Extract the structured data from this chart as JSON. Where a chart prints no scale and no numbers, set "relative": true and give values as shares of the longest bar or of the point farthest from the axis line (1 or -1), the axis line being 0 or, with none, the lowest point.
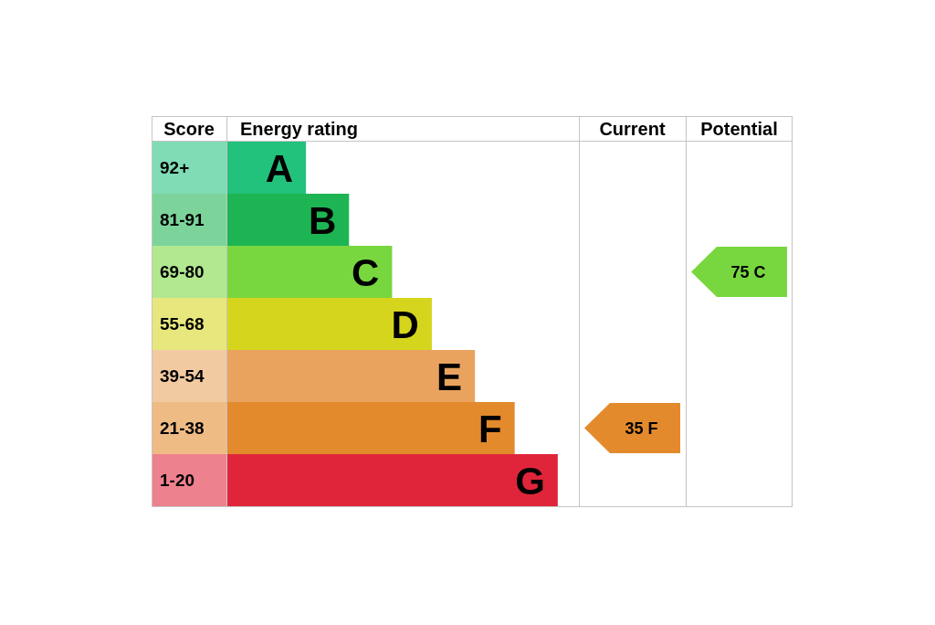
{
  "chart_data": [
    {
      "type": "bar",
      "orientation": "horizontal",
      "relative": true,
      "ylabel": "Score",
      "xlabel": "Energy rating",
      "categories": [
        "92+",
        "81-91",
        "69-80",
        "55-68",
        "39-54",
        "21-38",
        "1-20"
      ],
      "values": [
        0.24,
        0.37,
        0.5,
        0.62,
        0.75,
        0.87,
        1
      ],
      "colors": [
        "#22c27d",
        "#1db553",
        "#78d73f",
        "#d6d51e",
        "#e9a35f",
        "#e38a2d",
        "#e0253a"
      ],
      "annotations": [
        {
          "text": "A",
          "x": 0.24,
          "y": "92+"
        },
        {
          "text": "B",
          "x": 0.37,
          "y": "81-91"
        },
        {
          "text": "C",
          "x": 0.5,
          "y": "69-80"
        },
        {
          "text": "D",
          "x": 0.62,
          "y": "55-68"
        },
        {
          "text": "E",
          "x": 0.75,
          "y": "39-54"
        },
        {
          "text": "F",
          "x": 0.87,
          "y": "21-38"
        },
        {
          "text": "G",
          "x": 1,
          "y": "1-20"
        }
      ]
    },
    {
      "type": "other",
      "title": "Current",
      "values": [
        null,
        null,
        null,
        null,
        null,
        35,
        null
      ],
      "colors": [
        null,
        null,
        null,
        null,
        null,
        "#e38a2d",
        null
      ],
      "value_labels": [
        null,
        null,
        null,
        null,
        null,
        "35 F",
        null
      ]
    },
    {
      "type": "other",
      "title": "Potential",
      "values": [
        null,
        null,
        75,
        null,
        null,
        null,
        null
      ],
      "colors": [
        null,
        null,
        "#78d73f",
        null,
        null,
        null,
        null
      ],
      "value_labels": [
        null,
        null,
        "75 C",
        null,
        null,
        null,
        null
      ]
    }
  ]
}
